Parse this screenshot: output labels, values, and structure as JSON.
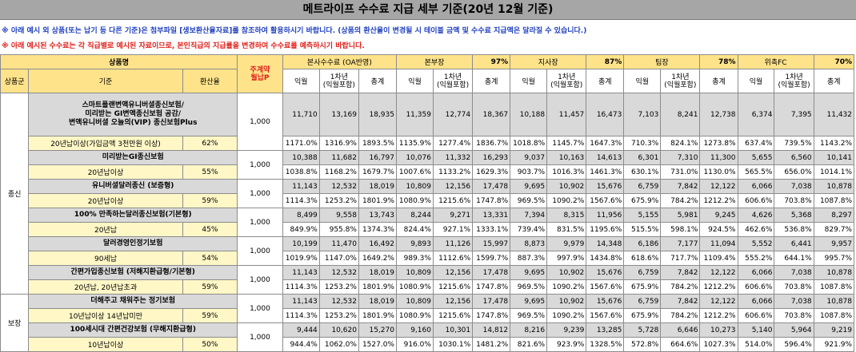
{
  "title": "메트라이프 수수료 지급 세부 기준(20년 12월 기준)",
  "notes": [
    "※ 아래 예시 외 상품(또는 납기 등 다른 기준)은 첨부파일 [생보환산율자료]를 참조하여 활용하시기 바랍니다. (상품의 환산율이 변경될 시 테이블 금액 및 수수료 지급액은 달라질 수 있습니다.)",
    "※ 아래 예시된 수수료는 각 직급별로 예시된 자료이므로, 본인직급의 지급률을 변경하여 수수료를 예측하시기 바랍니다."
  ],
  "header": {
    "product_name": "상품명",
    "monthly_premium": "주계약\n월납P",
    "groups": [
      {
        "name": "본사수수료 (OA반영)",
        "rate": ""
      },
      {
        "name": "본부장",
        "rate": "97%"
      },
      {
        "name": "지사장",
        "rate": "87%"
      },
      {
        "name": "팀장",
        "rate": "78%"
      },
      {
        "name": "위촉FC",
        "rate": "70%"
      }
    ],
    "category": "상품군",
    "standard": "기준",
    "conversion": "환산율",
    "sub": [
      "익월",
      "1차년\n(익월포함)",
      "총계"
    ]
  },
  "categories": [
    {
      "name": "종신",
      "rowspan": 14
    },
    {
      "name": "보장",
      "rowspan": 4
    }
  ],
  "products": [
    {
      "name": "스마트플랜변액유니버셜종신보험/\n미리받는 GI변액종신보험 공감/\n변액유니버셜 오늘의(VIP) 종신보험Plus",
      "criteria": "20년납이상(가입금액 3천만원 이상)",
      "rate": "62%",
      "premium": "1,000",
      "amounts": [
        "11,710",
        "13,169",
        "18,935",
        "11,359",
        "12,774",
        "18,367",
        "10,188",
        "11,457",
        "16,473",
        "7,103",
        "8,241",
        "12,738",
        "6,374",
        "7,395",
        "11,432"
      ],
      "percents": [
        "1171.0%",
        "1316.9%",
        "1893.5%",
        "1135.9%",
        "1277.4%",
        "1836.7%",
        "1018.8%",
        "1145.7%",
        "1647.3%",
        "710.3%",
        "824.1%",
        "1273.8%",
        "637.4%",
        "739.5%",
        "1143.2%"
      ]
    },
    {
      "name": "미리받는GI종신보험",
      "criteria": "20년납이상",
      "rate": "55%",
      "premium": "1,000",
      "amounts": [
        "10,388",
        "11,682",
        "16,797",
        "10,076",
        "11,332",
        "16,293",
        "9,037",
        "10,163",
        "14,613",
        "6,301",
        "7,310",
        "11,300",
        "5,655",
        "6,560",
        "10,141"
      ],
      "percents": [
        "1038.8%",
        "1168.2%",
        "1679.7%",
        "1007.6%",
        "1133.2%",
        "1629.3%",
        "903.7%",
        "1016.3%",
        "1461.3%",
        "630.1%",
        "731.0%",
        "1130.0%",
        "565.5%",
        "656.0%",
        "1014.1%"
      ]
    },
    {
      "name": "유니버셜달러종신 (보증형)",
      "criteria": "20년납이상",
      "rate": "59%",
      "premium": "1,000",
      "amounts": [
        "11,143",
        "12,532",
        "18,019",
        "10,809",
        "12,156",
        "17,478",
        "9,695",
        "10,902",
        "15,676",
        "6,759",
        "7,842",
        "12,122",
        "6,066",
        "7,038",
        "10,878"
      ],
      "percents": [
        "1114.3%",
        "1253.2%",
        "1801.9%",
        "1080.9%",
        "1215.6%",
        "1747.8%",
        "969.5%",
        "1090.2%",
        "1567.6%",
        "675.9%",
        "784.2%",
        "1212.2%",
        "606.6%",
        "703.8%",
        "1087.8%"
      ]
    },
    {
      "name": "100% 만족하는달러종신보험(기본형)",
      "criteria": "20년납",
      "rate": "45%",
      "premium": "1,000",
      "amounts": [
        "8,499",
        "9,558",
        "13,743",
        "8,244",
        "9,271",
        "13,331",
        "7,394",
        "8,315",
        "11,956",
        "5,155",
        "5,981",
        "9,245",
        "4,626",
        "5,368",
        "8,297"
      ],
      "percents": [
        "849.9%",
        "955.8%",
        "1374.3%",
        "824.4%",
        "927.1%",
        "1333.1%",
        "739.4%",
        "831.5%",
        "1195.6%",
        "515.5%",
        "598.1%",
        "924.5%",
        "462.6%",
        "536.8%",
        "829.7%"
      ]
    },
    {
      "name": "달러경영인정기보험",
      "criteria": "90세납",
      "rate": "54%",
      "premium": "1,000",
      "amounts": [
        "10,199",
        "11,470",
        "16,492",
        "9,893",
        "11,126",
        "15,997",
        "8,873",
        "9,979",
        "14,348",
        "6,186",
        "7,177",
        "11,094",
        "5,552",
        "6,441",
        "9,957"
      ],
      "percents": [
        "1019.9%",
        "1147.0%",
        "1649.2%",
        "989.3%",
        "1112.6%",
        "1599.7%",
        "887.3%",
        "997.9%",
        "1434.8%",
        "618.6%",
        "717.7%",
        "1109.4%",
        "555.2%",
        "644.1%",
        "995.7%"
      ]
    },
    {
      "name": "간편가입종신보험 (저해지환급형/기본형)",
      "criteria": "20년납, 20년납초과",
      "rate": "59%",
      "premium": "1,000",
      "amounts": [
        "11,143",
        "12,532",
        "18,019",
        "10,809",
        "12,156",
        "17,478",
        "9,695",
        "10,902",
        "15,676",
        "6,759",
        "7,842",
        "12,122",
        "6,066",
        "7,038",
        "10,878"
      ],
      "percents": [
        "1114.3%",
        "1253.2%",
        "1801.9%",
        "1080.9%",
        "1215.6%",
        "1747.8%",
        "969.5%",
        "1090.2%",
        "1567.6%",
        "675.9%",
        "784.2%",
        "1212.2%",
        "606.6%",
        "703.8%",
        "1087.8%"
      ]
    },
    {
      "name": "더해주고 채워주는 정기보험",
      "criteria": "10년납이상 14년납미만",
      "rate": "59%",
      "premium": "1,000",
      "amounts": [
        "11,143",
        "12,532",
        "18,019",
        "10,809",
        "12,156",
        "17,478",
        "9,695",
        "10,902",
        "15,676",
        "6,759",
        "7,842",
        "12,122",
        "6,066",
        "7,038",
        "10,878"
      ],
      "percents": [
        "1114.3%",
        "1253.2%",
        "1801.9%",
        "1080.9%",
        "1215.6%",
        "1747.8%",
        "969.5%",
        "1090.2%",
        "1567.6%",
        "675.9%",
        "784.2%",
        "1212.2%",
        "606.6%",
        "703.8%",
        "1087.8%"
      ]
    },
    {
      "name": "100세시대 간편건강보험 (무해지환급형)",
      "criteria": "10년납이상",
      "rate": "50%",
      "premium": "1,000",
      "amounts": [
        "9,444",
        "10,620",
        "15,270",
        "9,160",
        "10,301",
        "14,812",
        "8,216",
        "9,239",
        "13,285",
        "5,728",
        "6,646",
        "10,273",
        "5,140",
        "5,964",
        "9,219"
      ],
      "percents": [
        "944.4%",
        "1062.0%",
        "1527.0%",
        "916.0%",
        "1030.1%",
        "1481.2%",
        "821.6%",
        "923.9%",
        "1328.5%",
        "572.8%",
        "664.6%",
        "1027.3%",
        "514.0%",
        "596.4%",
        "921.9%"
      ]
    }
  ]
}
